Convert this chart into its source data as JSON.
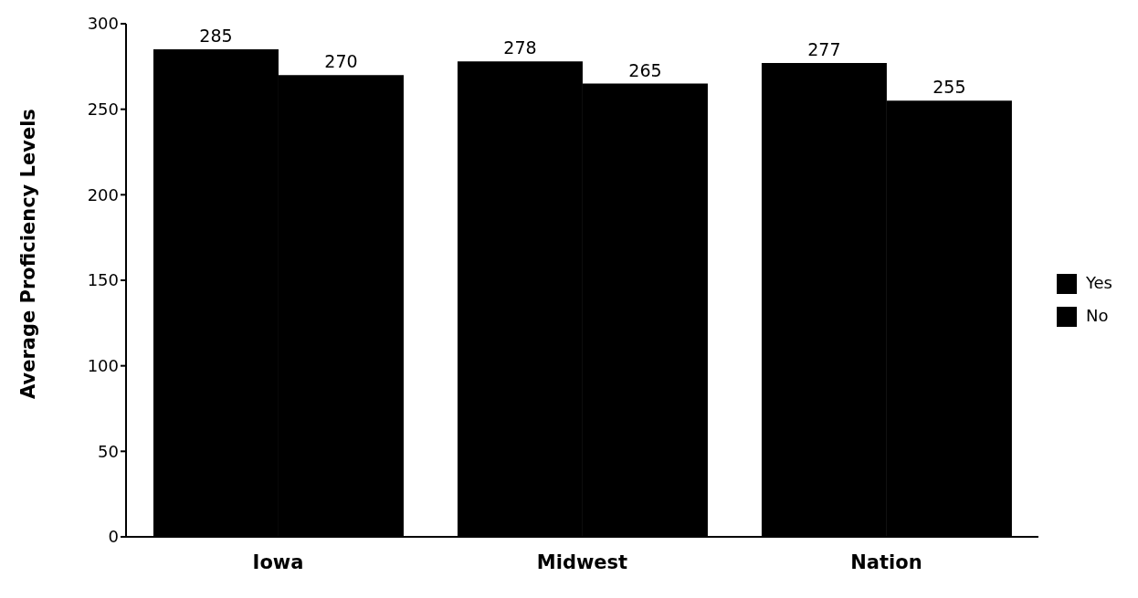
{
  "chart_data": {
    "type": "bar",
    "ylabel": "Average Proficiency Levels",
    "categories": [
      "Iowa",
      "Midwest",
      "Nation"
    ],
    "series": [
      {
        "name": "Yes",
        "color": "#000000",
        "values": [
          285,
          278,
          277
        ]
      },
      {
        "name": "No",
        "color": "#000000",
        "values": [
          270,
          265,
          255
        ]
      }
    ],
    "ylim": [
      0,
      300
    ],
    "yticks": [
      0,
      50,
      100,
      150,
      200,
      250,
      300
    ],
    "data_labels": true,
    "legend": "right",
    "grid": false
  }
}
